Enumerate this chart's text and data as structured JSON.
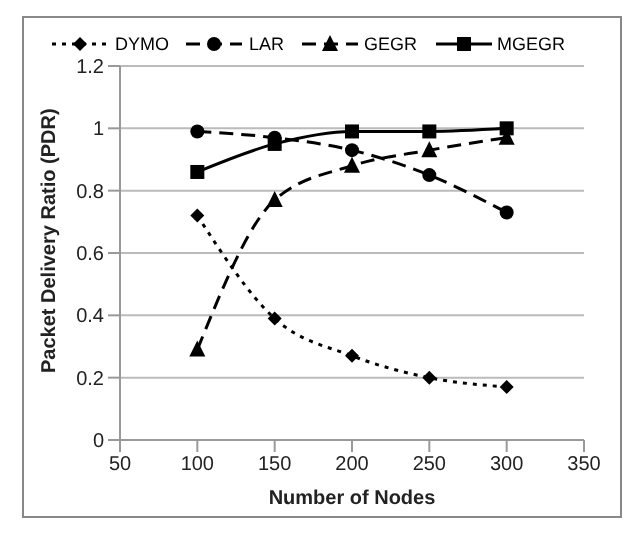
{
  "chart_data": {
    "type": "line",
    "xlabel": "Number of Nodes",
    "ylabel": "Packet Delivery Ratio (PDR)",
    "x": [
      100,
      150,
      200,
      250,
      300
    ],
    "series": [
      {
        "name": "DYMO",
        "color": "#000000",
        "marker": "diamond",
        "line_style": "dotted",
        "values": [
          0.72,
          0.39,
          0.27,
          0.2,
          0.17
        ]
      },
      {
        "name": "LAR",
        "color": "#000000",
        "marker": "circle",
        "line_style": "dashed",
        "values": [
          0.99,
          0.97,
          0.93,
          0.85,
          0.73
        ]
      },
      {
        "name": "GEGR",
        "color": "#000000",
        "marker": "triangle",
        "line_style": "dashed",
        "values": [
          0.29,
          0.77,
          0.88,
          0.93,
          0.97
        ]
      },
      {
        "name": "MGEGR",
        "color": "#000000",
        "marker": "square",
        "line_style": "solid",
        "values": [
          0.86,
          0.95,
          0.99,
          0.99,
          1.0
        ]
      }
    ],
    "xlim": [
      50,
      350
    ],
    "xticks": [
      50,
      100,
      150,
      200,
      250,
      300,
      350
    ],
    "ylim": [
      0,
      1.2
    ],
    "yticks": [
      0,
      0.2,
      0.4,
      0.6,
      0.8,
      1,
      1.2
    ],
    "grid": "y",
    "legend": "top"
  }
}
